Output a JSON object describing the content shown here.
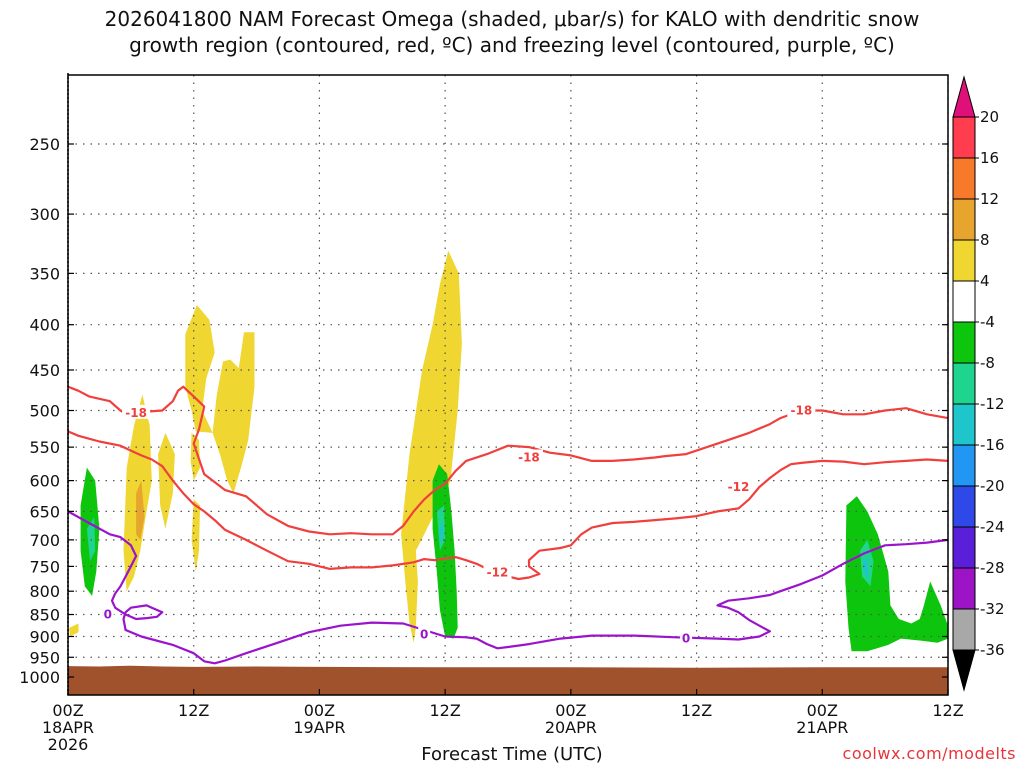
{
  "chart_data": {
    "type": "time-height cross section",
    "title_line1": "2026041800 NAM Forecast Omega (shaded, μbar/s) for KALO with dendritic snow",
    "title_line2": "growth region (contoured, red, ºC) and freezing level (contoured, purple, ºC)",
    "xlabel": "Forecast Time (UTC)",
    "ylabel": "",
    "credit": "coolwx.com/modelts",
    "y_axis": {
      "scale": "pressure (reversed)",
      "range_hpa": [
        1000,
        200
      ],
      "ticks": [
        "250",
        "300",
        "350",
        "400",
        "450",
        "500",
        "550",
        "600",
        "650",
        "700",
        "750",
        "800",
        "850",
        "900",
        "950",
        "1000"
      ]
    },
    "x_axis": {
      "range_hours": [
        0,
        84
      ],
      "ticks": [
        {
          "hour": 0,
          "lines": [
            "00Z",
            "18APR",
            "2026"
          ]
        },
        {
          "hour": 12,
          "lines": [
            "12Z"
          ]
        },
        {
          "hour": 24,
          "lines": [
            "00Z",
            "19APR"
          ]
        },
        {
          "hour": 36,
          "lines": [
            "12Z"
          ]
        },
        {
          "hour": 48,
          "lines": [
            "00Z",
            "20APR"
          ]
        },
        {
          "hour": 60,
          "lines": [
            "12Z"
          ]
        },
        {
          "hour": 72,
          "lines": [
            "00Z",
            "21APR"
          ]
        },
        {
          "hour": 84,
          "lines": [
            "12Z"
          ]
        }
      ],
      "grid": "dotted"
    },
    "colorbar": {
      "labels": [
        "20",
        "16",
        "12",
        "8",
        "4",
        "-4",
        "-8",
        "-12",
        "-16",
        "-20",
        "-24",
        "-28",
        "-32",
        "-36"
      ],
      "colors": [
        "#ff3d4e",
        "#f7792a",
        "#e8a52e",
        "#efd630",
        "#ffffff",
        "#0dc50d",
        "#1ed48e",
        "#1ec6cc",
        "#2196f3",
        "#2f49e8",
        "#5a1fd8",
        "#9c14c6",
        "#a8a8a8"
      ],
      "top_arrow_color": "#e0107a",
      "bottom_arrow_color": "#000000"
    },
    "series": [
      {
        "name": "-18",
        "color": "#f0403e",
        "points": [
          [
            0,
            470
          ],
          [
            1,
            475
          ],
          [
            2,
            482
          ],
          [
            4,
            488
          ],
          [
            5,
            500
          ],
          [
            6,
            508
          ],
          [
            7,
            502
          ],
          [
            9,
            500
          ],
          [
            10,
            488
          ],
          [
            10.5,
            475
          ],
          [
            11,
            470
          ],
          [
            12,
            482
          ],
          [
            13,
            495
          ],
          [
            12.5,
            525
          ],
          [
            12,
            545
          ],
          [
            13,
            590
          ],
          [
            15,
            615
          ],
          [
            17,
            625
          ],
          [
            19,
            655
          ],
          [
            21,
            675
          ],
          [
            23,
            685
          ],
          [
            25,
            690
          ],
          [
            27,
            688
          ],
          [
            29,
            690
          ],
          [
            31,
            690
          ],
          [
            32,
            675
          ],
          [
            33,
            650
          ],
          [
            34,
            630
          ],
          [
            35,
            615
          ],
          [
            36,
            605
          ],
          [
            37,
            585
          ],
          [
            38,
            570
          ],
          [
            40,
            560
          ],
          [
            42,
            548
          ],
          [
            44,
            550
          ],
          [
            46,
            558
          ],
          [
            48,
            562
          ],
          [
            50,
            570
          ],
          [
            52,
            570
          ],
          [
            54,
            568
          ],
          [
            56,
            565
          ],
          [
            57,
            563
          ],
          [
            59,
            560
          ],
          [
            61,
            550
          ],
          [
            63,
            540
          ],
          [
            65,
            530
          ],
          [
            67,
            518
          ],
          [
            68,
            510
          ],
          [
            70,
            500
          ],
          [
            72,
            500
          ],
          [
            74,
            505
          ],
          [
            76,
            505
          ],
          [
            78,
            500
          ],
          [
            80,
            497
          ],
          [
            82,
            505
          ],
          [
            84,
            510
          ]
        ],
        "label_positions": [
          [
            6.5,
            503
          ],
          [
            44,
            565
          ],
          [
            70,
            500
          ]
        ]
      },
      {
        "name": "-12",
        "color": "#f0403e",
        "points": [
          [
            0,
            528
          ],
          [
            1,
            534
          ],
          [
            2,
            538
          ],
          [
            3,
            542
          ],
          [
            5,
            548
          ],
          [
            6,
            555
          ],
          [
            7,
            562
          ],
          [
            8,
            568
          ],
          [
            9,
            578
          ],
          [
            10,
            600
          ],
          [
            11,
            620
          ],
          [
            12,
            638
          ],
          [
            13,
            650
          ],
          [
            14,
            665
          ],
          [
            15,
            682
          ],
          [
            17,
            700
          ],
          [
            19,
            720
          ],
          [
            21,
            740
          ],
          [
            23,
            745
          ],
          [
            25,
            755
          ],
          [
            27,
            752
          ],
          [
            29,
            752
          ],
          [
            31,
            748
          ],
          [
            33,
            742
          ],
          [
            34,
            736
          ],
          [
            35,
            738
          ],
          [
            36,
            735
          ],
          [
            37,
            732
          ],
          [
            38,
            738
          ],
          [
            39,
            745
          ],
          [
            40,
            755
          ],
          [
            41,
            760
          ],
          [
            42,
            770
          ],
          [
            43,
            775
          ],
          [
            44,
            772
          ],
          [
            45,
            765
          ],
          [
            44,
            750
          ],
          [
            44,
            738
          ],
          [
            45,
            720
          ],
          [
            47,
            715
          ],
          [
            48,
            710
          ],
          [
            49,
            690
          ],
          [
            50,
            678
          ],
          [
            52,
            670
          ],
          [
            54,
            668
          ],
          [
            56,
            665
          ],
          [
            58,
            662
          ],
          [
            60,
            658
          ],
          [
            62,
            650
          ],
          [
            64,
            645
          ],
          [
            65,
            630
          ],
          [
            66,
            610
          ],
          [
            67,
            596
          ],
          [
            68,
            584
          ],
          [
            69,
            575
          ],
          [
            70,
            573
          ],
          [
            72,
            570
          ],
          [
            74,
            571
          ],
          [
            76,
            575
          ],
          [
            78,
            572
          ],
          [
            80,
            570
          ],
          [
            82,
            568
          ],
          [
            84,
            570
          ]
        ],
        "label_positions": [
          [
            41,
            762
          ],
          [
            64,
            610
          ]
        ]
      },
      {
        "name": "0",
        "color": "#9a14cc",
        "points": [
          [
            0,
            650
          ],
          [
            1,
            660
          ],
          [
            2,
            670
          ],
          [
            4,
            690
          ],
          [
            5,
            695
          ],
          [
            6,
            710
          ],
          [
            6.5,
            730
          ],
          [
            6,
            750
          ],
          [
            5.5,
            770
          ],
          [
            5,
            790
          ],
          [
            4.5,
            805
          ],
          [
            4.2,
            820
          ],
          [
            4.5,
            835
          ],
          [
            5.5,
            850
          ],
          [
            6.5,
            860
          ],
          [
            7.5,
            858
          ],
          [
            8.5,
            855
          ],
          [
            9,
            845
          ],
          [
            8,
            835
          ],
          [
            7.5,
            830
          ],
          [
            6,
            835
          ],
          [
            5.5,
            845
          ],
          [
            5.3,
            860
          ],
          [
            5.5,
            885
          ],
          [
            7,
            900
          ],
          [
            10,
            920
          ],
          [
            12,
            940
          ],
          [
            13,
            960
          ],
          [
            14,
            965
          ],
          [
            15,
            958
          ],
          [
            17,
            940
          ],
          [
            20,
            915
          ],
          [
            23,
            890
          ],
          [
            26,
            875
          ],
          [
            29,
            868
          ],
          [
            32,
            870
          ],
          [
            34,
            885
          ],
          [
            36,
            900
          ],
          [
            38,
            902
          ],
          [
            39,
            905
          ],
          [
            40,
            918
          ],
          [
            41,
            928
          ],
          [
            42,
            925
          ],
          [
            44,
            918
          ],
          [
            47,
            905
          ],
          [
            50,
            898
          ],
          [
            54,
            898
          ],
          [
            58,
            902
          ],
          [
            62,
            905
          ],
          [
            64,
            907
          ],
          [
            66,
            900
          ],
          [
            67,
            888
          ],
          [
            66,
            875
          ],
          [
            65,
            862
          ],
          [
            64,
            845
          ],
          [
            63,
            835
          ],
          [
            62,
            830
          ],
          [
            63,
            820
          ],
          [
            65,
            815
          ],
          [
            67,
            808
          ],
          [
            68,
            800
          ],
          [
            70,
            785
          ],
          [
            72,
            768
          ],
          [
            74,
            745
          ],
          [
            76,
            725
          ],
          [
            78,
            710
          ],
          [
            80,
            708
          ],
          [
            82,
            705
          ],
          [
            84,
            700
          ]
        ],
        "label_positions": [
          [
            3.8,
            850
          ],
          [
            34,
            895
          ],
          [
            59,
            905
          ]
        ]
      }
    ],
    "shaded_regions": [
      {
        "value_range": "4 to 8",
        "color": "#efd630",
        "approx_extent": "18APR 08Z-16Z, 400-700 hPa"
      },
      {
        "value_range": "4 to 8",
        "color": "#efd630",
        "approx_extent": "19APR 07Z-12Z, 340-920 hPa"
      },
      {
        "value_range": "8 to 12",
        "color": "#e8a52e",
        "approx_extent": "18APR 06Z, 600-740 hPa"
      },
      {
        "value_range": "-4 to -8",
        "color": "#0dc50d",
        "approx_extent": "18APR 02Z, 580-820 hPa"
      },
      {
        "value_range": "-4 to -12",
        "color": "#0dc50d",
        "approx_extent": "19APR 11Z-12Z, 575-900 hPa"
      },
      {
        "value_range": "-4 to -12",
        "color": "#0dc50d",
        "approx_extent": "21APR 02Z-12Z, 640-935 hPa"
      }
    ],
    "terrain": {
      "color": "#a0522d",
      "approx_surface_hpa": 975
    }
  }
}
